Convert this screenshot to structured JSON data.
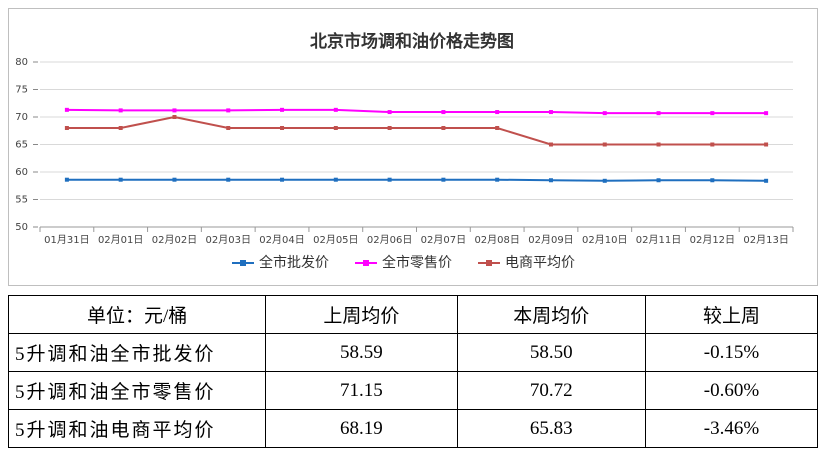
{
  "chart_data": {
    "type": "line",
    "title": "北京市场调和油价格走势图",
    "categories": [
      "01月31日",
      "02月01日",
      "02月02日",
      "02月03日",
      "02月04日",
      "02月05日",
      "02月06日",
      "02月07日",
      "02月08日",
      "02月09日",
      "02月10日",
      "02月11日",
      "02月12日",
      "02月13日"
    ],
    "series": [
      {
        "name": "全市批发价",
        "color": "#1f6fbf",
        "values": [
          58.6,
          58.6,
          58.6,
          58.6,
          58.6,
          58.6,
          58.6,
          58.6,
          58.6,
          58.5,
          58.4,
          58.5,
          58.5,
          58.4
        ]
      },
      {
        "name": "全市零售价",
        "color": "#ff00ff",
        "values": [
          71.3,
          71.2,
          71.2,
          71.2,
          71.3,
          71.3,
          70.9,
          70.9,
          70.9,
          70.9,
          70.7,
          70.7,
          70.7,
          70.7
        ]
      },
      {
        "name": "电商平均价",
        "color": "#c0504d",
        "values": [
          68,
          68,
          70,
          68,
          68,
          68,
          68,
          68,
          68,
          65,
          65,
          65,
          65,
          65
        ]
      }
    ],
    "ylim": [
      50,
      80
    ],
    "yticks": [
      50,
      55,
      60,
      65,
      70,
      75,
      80
    ],
    "grid": true,
    "legend": "bottom"
  },
  "table": {
    "header": [
      "单位：元/桶",
      "上周均价",
      "本周均价",
      "较上周"
    ],
    "rows": [
      [
        "5升调和油全市批发价",
        "58.59",
        "58.50",
        "-0.15%"
      ],
      [
        "5升调和油全市零售价",
        "71.15",
        "70.72",
        "-0.60%"
      ],
      [
        "5升调和油电商平均价",
        "68.19",
        "65.83",
        "-3.46%"
      ]
    ]
  }
}
